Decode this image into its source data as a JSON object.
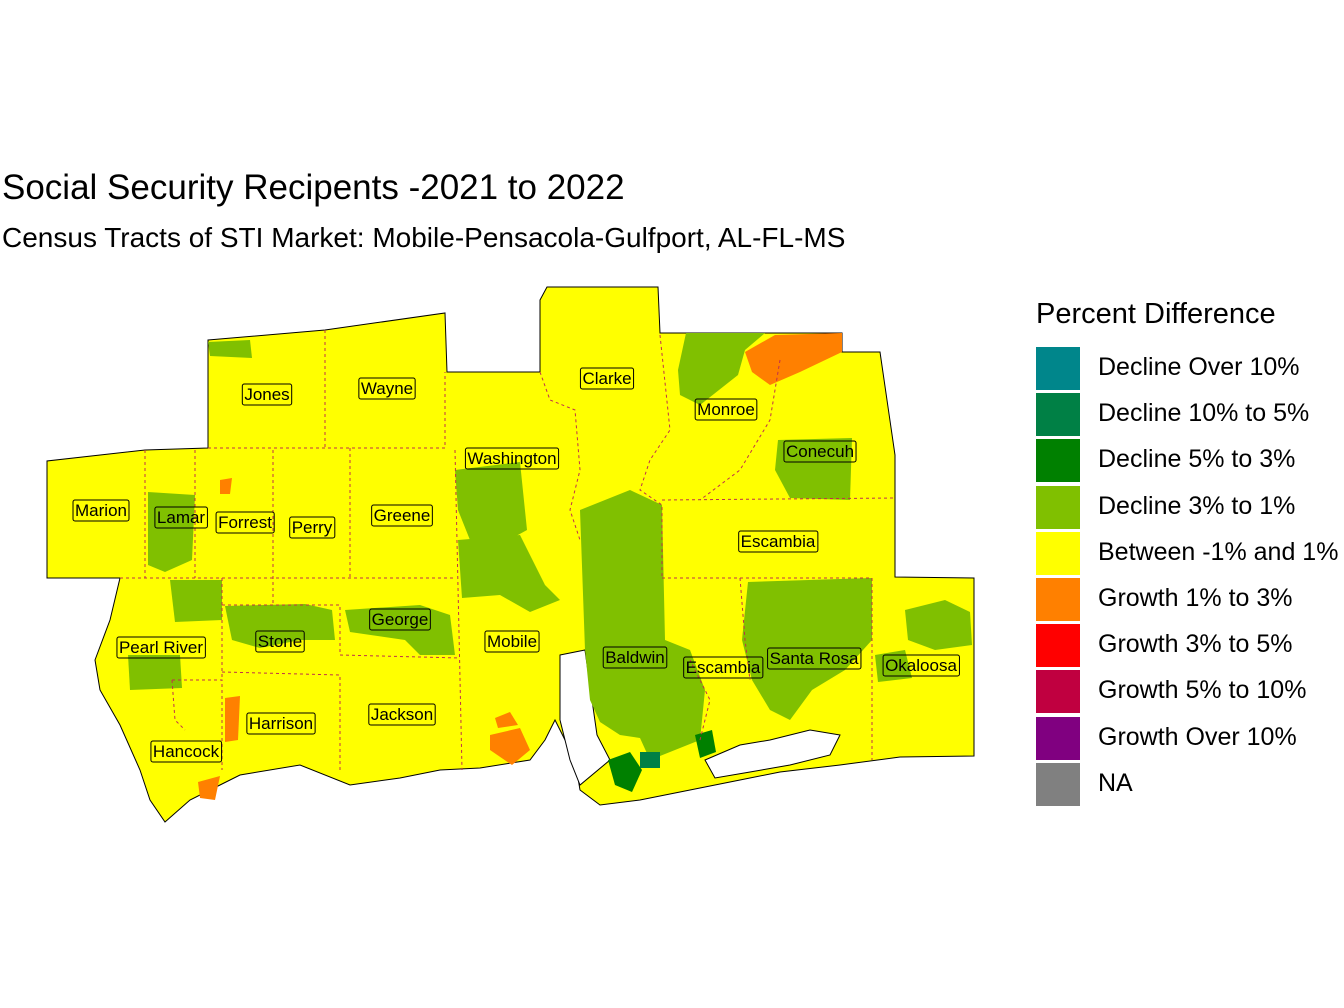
{
  "title": "Social Security Recipents -2021 to 2022",
  "subtitle": "Census Tracts of STI Market: Mobile-Pensacola-Gulfport, AL-FL-MS",
  "legend": {
    "title": "Percent Difference",
    "items": [
      {
        "label": "Decline Over 10%",
        "color": "#00868B"
      },
      {
        "label": "Decline 10% to 5%",
        "color": "#008045"
      },
      {
        "label": "Decline 5% to 3%",
        "color": "#008000"
      },
      {
        "label": "Decline 3% to 1%",
        "color": "#80C000"
      },
      {
        "label": "Between -1% and 1%",
        "color": "#FFFF00"
      },
      {
        "label": "Growth 1% to 3%",
        "color": "#FF8000"
      },
      {
        "label": "Growth 3% to 5%",
        "color": "#FF0000"
      },
      {
        "label": "Growth 5% to 10%",
        "color": "#C00040"
      },
      {
        "label": "Growth Over 10%",
        "color": "#800080"
      },
      {
        "label": "NA",
        "color": "#808080"
      }
    ]
  },
  "counties": [
    {
      "name": "Jones"
    },
    {
      "name": "Wayne"
    },
    {
      "name": "Clarke"
    },
    {
      "name": "Monroe"
    },
    {
      "name": "Washington"
    },
    {
      "name": "Conecuh"
    },
    {
      "name": "Marion"
    },
    {
      "name": "Lamar"
    },
    {
      "name": "Forrest"
    },
    {
      "name": "Perry"
    },
    {
      "name": "Greene"
    },
    {
      "name": "Escambia"
    },
    {
      "name": "Pearl River"
    },
    {
      "name": "Stone"
    },
    {
      "name": "George"
    },
    {
      "name": "Mobile"
    },
    {
      "name": "Baldwin"
    },
    {
      "name": "Escambia"
    },
    {
      "name": "Santa Rosa"
    },
    {
      "name": "Okaloosa"
    },
    {
      "name": "Harrison"
    },
    {
      "name": "Jackson"
    },
    {
      "name": "Hancock"
    }
  ]
}
